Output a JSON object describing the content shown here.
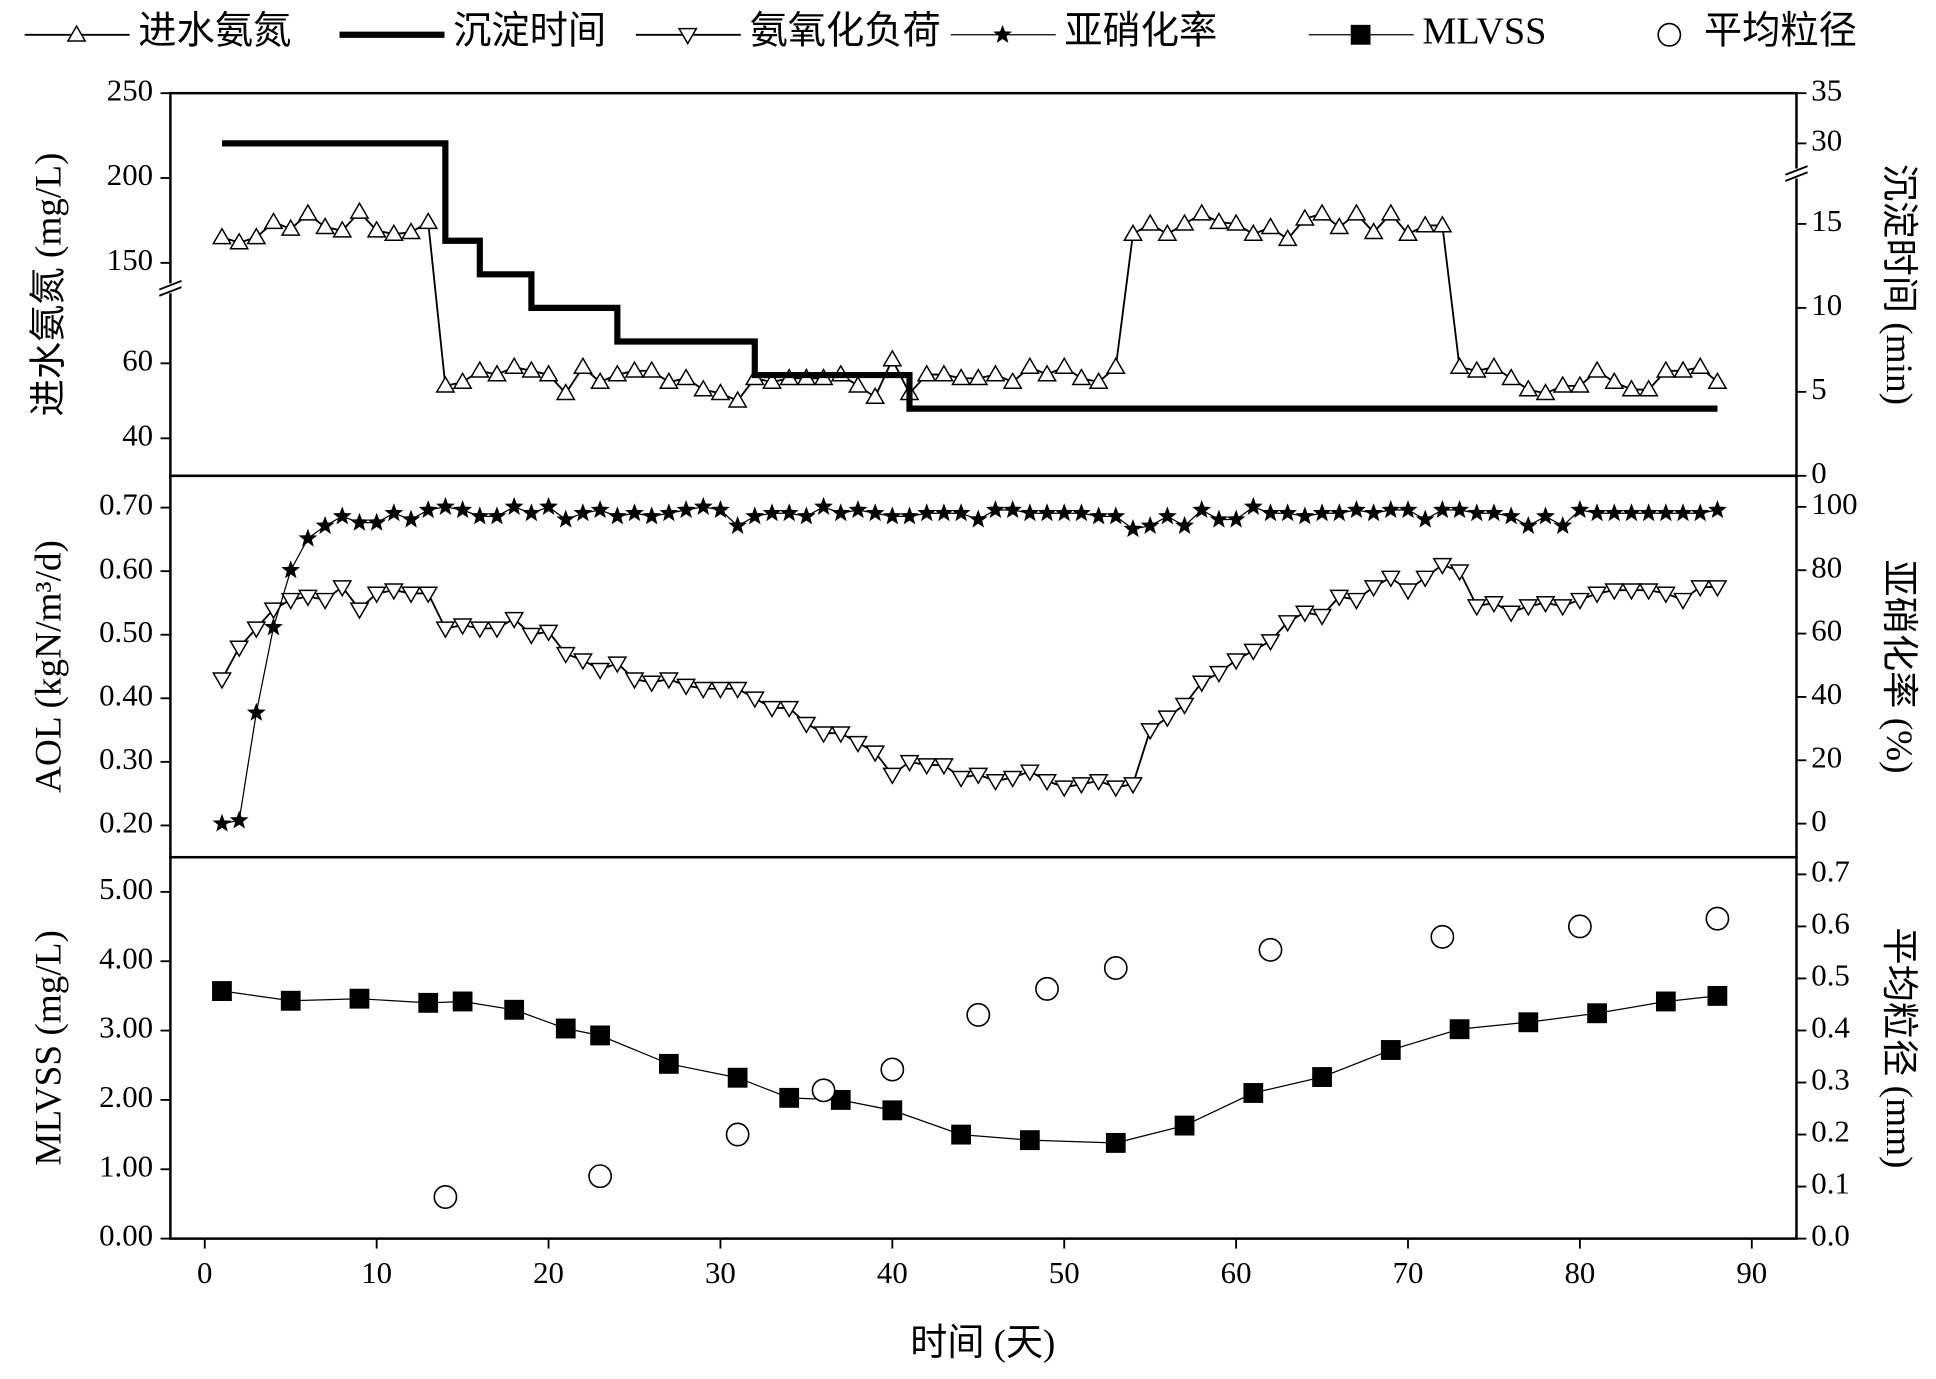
{
  "chart_data": {
    "type": "line",
    "xlabel": "时间 (天)",
    "xlim": [
      -2,
      92.6
    ],
    "xticks": [
      0,
      10,
      20,
      30,
      40,
      50,
      60,
      70,
      80,
      90
    ],
    "panels": [
      {
        "ylabel": "进水氨氮 (mg/L)",
        "y2label": "沉淀时间 (min)",
        "ylim": [
          30,
          250
        ],
        "ybreak": [
          80,
          135
        ],
        "yticks": [
          40,
          60,
          150,
          200,
          250
        ],
        "y2lim": [
          0,
          35
        ],
        "y2break": [
          18,
          27
        ],
        "y2ticks": [
          0,
          5,
          10,
          15,
          30,
          35
        ],
        "series": [
          {
            "name": "进水氨氮",
            "color": "#000000",
            "marker": "triangle-up",
            "line_width": 1.5,
            "axis": "y",
            "x": [
              1,
              2,
              3,
              4,
              5,
              6,
              7,
              8,
              9,
              10,
              11,
              12,
              13,
              14,
              15,
              16,
              17,
              18,
              19,
              20,
              21,
              22,
              23,
              24,
              25,
              26,
              27,
              28,
              29,
              30,
              31,
              32,
              33,
              34,
              35,
              36,
              37,
              38,
              39,
              40,
              41,
              42,
              43,
              44,
              45,
              46,
              47,
              48,
              49,
              50,
              51,
              52,
              53,
              54,
              55,
              56,
              57,
              58,
              59,
              60,
              61,
              62,
              63,
              64,
              65,
              66,
              67,
              68,
              69,
              70,
              71,
              72,
              73,
              74,
              75,
              76,
              77,
              78,
              79,
              80,
              81,
              82,
              83,
              84,
              85,
              86,
              87,
              88
            ],
            "values": [
              165,
              162,
              165,
              174,
              170,
              179,
              171,
              169,
              180,
              169,
              167,
              168,
              174,
              54,
              55,
              58,
              57,
              59,
              58,
              57,
              52,
              59,
              55,
              57,
              58,
              58,
              55,
              56,
              53,
              52,
              50,
              56,
              55,
              56,
              56,
              56,
              57,
              54,
              51,
              61,
              52,
              57,
              57,
              56,
              56,
              57,
              55,
              59,
              57,
              59,
              56,
              55,
              59,
              167,
              173,
              167,
              173,
              179,
              174,
              173,
              167,
              171,
              164,
              176,
              179,
              171,
              179,
              168,
              179,
              167,
              172,
              172,
              59,
              58,
              59,
              56,
              53,
              52,
              54,
              54,
              58,
              55,
              53,
              53,
              58,
              58,
              59,
              55
            ]
          },
          {
            "name": "沉淀时间",
            "color": "#000000",
            "marker": "none",
            "line_width": 5,
            "axis": "y2",
            "x": [
              1,
              14,
              14,
              16,
              16,
              19,
              19,
              24,
              24,
              32,
              32,
              41,
              41,
              88
            ],
            "values": [
              30,
              30,
              14,
              14,
              12,
              12,
              10,
              10,
              8,
              8,
              6,
              6,
              4,
              4
            ]
          }
        ]
      },
      {
        "ylabel": "AOL (kgN/m³/d)",
        "y2label": "亚硝化率 (%)",
        "ylim": [
          0.15,
          0.75
        ],
        "yticks": [
          {
            "value": 0.2,
            "label": "0.20"
          },
          {
            "value": 0.3,
            "label": "0.30"
          },
          {
            "value": 0.4,
            "label": "0.40"
          },
          {
            "value": 0.5,
            "label": "0.50"
          },
          {
            "value": 0.6,
            "label": "0.60"
          },
          {
            "value": 0.7,
            "label": "0.70"
          }
        ],
        "y2lim": [
          -10.6,
          109.8
        ],
        "y2ticks": [
          0,
          20,
          40,
          60,
          80,
          100
        ],
        "series": [
          {
            "name": "氨氧化负荷",
            "color": "#000000",
            "marker": "triangle-down",
            "line_width": 1.5,
            "axis": "y",
            "x": [
              1,
              2,
              3,
              4,
              5,
              6,
              7,
              8,
              9,
              10,
              11,
              12,
              13,
              14,
              15,
              16,
              17,
              18,
              19,
              20,
              21,
              22,
              23,
              24,
              25,
              26,
              27,
              28,
              29,
              30,
              31,
              32,
              33,
              34,
              35,
              36,
              37,
              38,
              39,
              40,
              41,
              42,
              43,
              44,
              45,
              46,
              47,
              48,
              49,
              50,
              51,
              52,
              53,
              54,
              55,
              56,
              57,
              58,
              59,
              60,
              61,
              62,
              63,
              64,
              65,
              66,
              67,
              68,
              69,
              70,
              71,
              72,
              73,
              74,
              75,
              76,
              77,
              78,
              79,
              80,
              81,
              82,
              83,
              84,
              85,
              86,
              87,
              88
            ],
            "values": [
              0.43,
              0.48,
              0.51,
              0.54,
              0.555,
              0.56,
              0.555,
              0.575,
              0.54,
              0.565,
              0.57,
              0.565,
              0.565,
              0.51,
              0.515,
              0.51,
              0.51,
              0.525,
              0.5,
              0.505,
              0.47,
              0.46,
              0.445,
              0.455,
              0.43,
              0.425,
              0.43,
              0.42,
              0.415,
              0.415,
              0.415,
              0.4,
              0.385,
              0.385,
              0.36,
              0.345,
              0.345,
              0.33,
              0.315,
              0.28,
              0.3,
              0.295,
              0.295,
              0.275,
              0.28,
              0.27,
              0.275,
              0.285,
              0.27,
              0.26,
              0.265,
              0.27,
              0.26,
              0.265,
              0.35,
              0.37,
              0.39,
              0.425,
              0.44,
              0.46,
              0.475,
              0.49,
              0.52,
              0.535,
              0.53,
              0.56,
              0.555,
              0.575,
              0.59,
              0.57,
              0.59,
              0.61,
              0.6,
              0.545,
              0.55,
              0.535,
              0.545,
              0.55,
              0.545,
              0.555,
              0.565,
              0.57,
              0.57,
              0.57,
              0.565,
              0.555,
              0.575,
              0.575
            ]
          },
          {
            "name": "亚硝化率",
            "color": "#000000",
            "marker": "star",
            "line_width": 1,
            "axis": "y2",
            "x": [
              1,
              2,
              3,
              4,
              5,
              6,
              7,
              8,
              9,
              10,
              11,
              12,
              13,
              14,
              15,
              16,
              17,
              18,
              19,
              20,
              21,
              22,
              23,
              24,
              25,
              26,
              27,
              28,
              29,
              30,
              31,
              32,
              33,
              34,
              35,
              36,
              37,
              38,
              39,
              40,
              41,
              42,
              43,
              44,
              45,
              46,
              47,
              48,
              49,
              50,
              51,
              52,
              53,
              54,
              55,
              56,
              57,
              58,
              59,
              60,
              61,
              62,
              63,
              64,
              65,
              66,
              67,
              68,
              69,
              70,
              71,
              72,
              73,
              74,
              75,
              76,
              77,
              78,
              79,
              80,
              81,
              82,
              83,
              84,
              85,
              86,
              87,
              88
            ],
            "values": [
              0,
              1,
              35,
              62,
              80,
              90,
              94,
              97,
              95,
              95,
              98,
              96,
              99,
              100,
              99,
              97,
              97,
              100,
              98,
              100,
              96,
              98,
              99,
              97,
              98,
              97,
              98,
              99,
              100,
              99,
              94,
              97,
              98,
              98,
              97,
              100,
              98,
              99,
              98,
              97,
              97,
              98,
              98,
              98,
              96,
              99,
              99,
              98,
              98,
              98,
              98,
              97,
              97,
              93,
              94,
              97,
              94,
              99,
              96,
              96,
              100,
              98,
              98,
              97,
              98,
              98,
              99,
              98,
              99,
              99,
              96,
              99,
              99,
              98,
              98,
              97,
              94,
              97,
              94,
              99,
              98,
              98,
              98,
              98,
              98,
              98,
              98,
              99
            ]
          }
        ]
      },
      {
        "ylabel": "MLVSS (mg/L)",
        "y2label": "平均粒径 (mm)",
        "ylim": [
          0,
          5.5
        ],
        "yticks": [
          {
            "value": 0,
            "label": "0.00"
          },
          {
            "value": 1,
            "label": "1.00"
          },
          {
            "value": 2,
            "label": "2.00"
          },
          {
            "value": 3,
            "label": "3.00"
          },
          {
            "value": 4,
            "label": "4.00"
          },
          {
            "value": 5,
            "label": "5.00"
          }
        ],
        "y2lim": [
          0,
          0.733
        ],
        "y2ticks": [
          {
            "value": 0,
            "label": "0.0"
          },
          {
            "value": 0.1,
            "label": "0.1"
          },
          {
            "value": 0.2,
            "label": "0.2"
          },
          {
            "value": 0.3,
            "label": "0.3"
          },
          {
            "value": 0.4,
            "label": "0.4"
          },
          {
            "value": 0.5,
            "label": "0.5"
          },
          {
            "value": 0.6,
            "label": "0.6"
          },
          {
            "value": 0.7,
            "label": "0.7"
          }
        ],
        "series": [
          {
            "name": "MLVSS",
            "color": "#000000",
            "marker": "square",
            "line_width": 1,
            "axis": "y",
            "x": [
              1,
              5,
              9,
              13,
              15,
              18,
              21,
              23,
              27,
              31,
              34,
              37,
              40,
              44,
              48,
              53,
              57,
              61,
              65,
              69,
              73,
              77,
              81,
              85,
              88
            ],
            "values": [
              3.57,
              3.43,
              3.46,
              3.4,
              3.42,
              3.3,
              3.03,
              2.93,
              2.52,
              2.32,
              2.03,
              2.0,
              1.85,
              1.5,
              1.42,
              1.38,
              1.63,
              2.1,
              2.33,
              2.72,
              3.02,
              3.12,
              3.25,
              3.42,
              3.5
            ]
          },
          {
            "name": "平均粒径",
            "color": "#000000",
            "marker": "circle",
            "line_width": 0,
            "axis": "y2",
            "x": [
              14,
              23,
              31,
              36,
              40,
              45,
              49,
              53,
              62,
              72,
              80,
              88
            ],
            "values": [
              0.08,
              0.12,
              0.2,
              0.285,
              0.325,
              0.43,
              0.48,
              0.52,
              0.555,
              0.58,
              0.6,
              0.615
            ]
          }
        ]
      }
    ]
  }
}
